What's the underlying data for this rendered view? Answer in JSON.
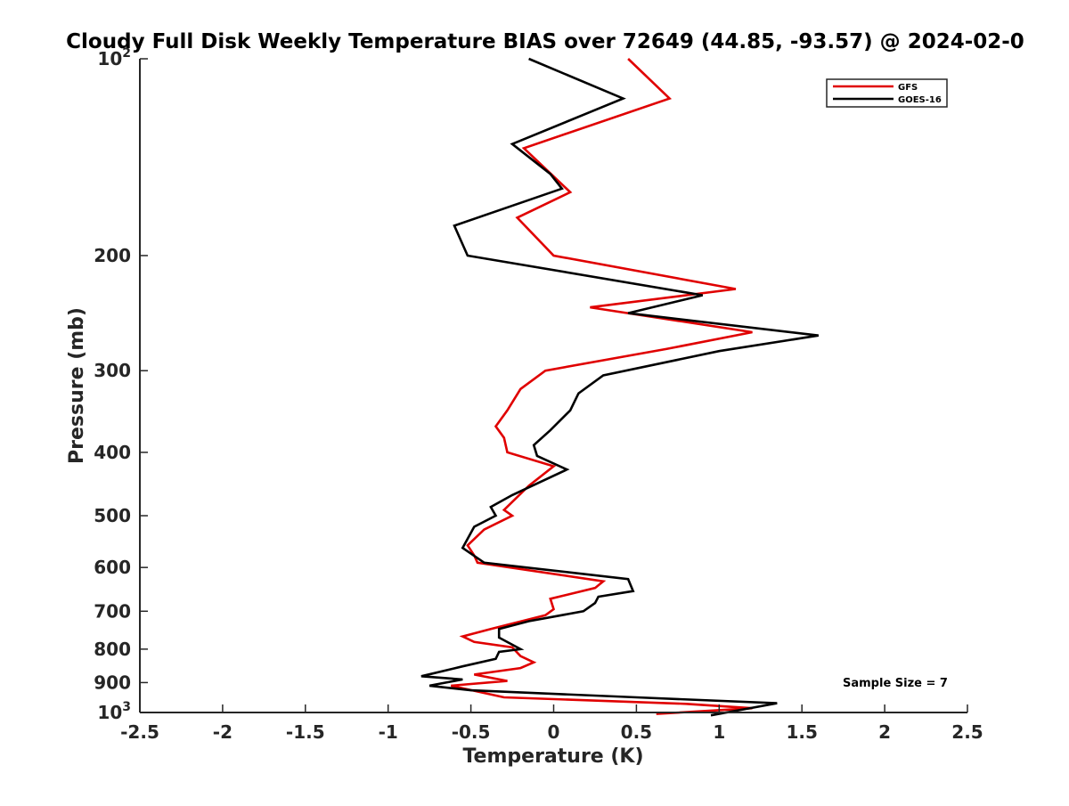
{
  "chart_data": {
    "type": "line",
    "title": "Cloudy Full Disk Weekly Temperature BIAS over 72649 (44.85, -93.57) @ 2024-02-0",
    "xlabel": "Temperature (K)",
    "ylabel": "Pressure (mb)",
    "xlim": [
      -2.5,
      2.5
    ],
    "ylim": [
      100,
      1000
    ],
    "y_scale": "log",
    "y_reversed": true,
    "x_ticks": [
      -2.5,
      -2,
      -1.5,
      -1,
      -0.5,
      0,
      0.5,
      1,
      1.5,
      2,
      2.5
    ],
    "x_tick_labels": [
      "-2.5",
      "-2",
      "-1.5",
      "-1",
      "-0.5",
      "0",
      "0.5",
      "1",
      "1.5",
      "2",
      "2.5"
    ],
    "y_ticks": [
      {
        "value": 100,
        "base": "10",
        "exp": "2"
      },
      {
        "value": 200,
        "label": "200"
      },
      {
        "value": 300,
        "label": "300"
      },
      {
        "value": 400,
        "label": "400"
      },
      {
        "value": 500,
        "label": "500"
      },
      {
        "value": 600,
        "label": "600"
      },
      {
        "value": 700,
        "label": "700"
      },
      {
        "value": 800,
        "label": "800"
      },
      {
        "value": 900,
        "label": "900"
      },
      {
        "value": 1000,
        "base": "10",
        "exp": "3"
      }
    ],
    "grid": false,
    "legend_position": "top-right",
    "annotation": "Sample Size = 7",
    "series": [
      {
        "name": "GFS",
        "color": "#e00000",
        "points": [
          [
            0.45,
            100
          ],
          [
            0.7,
            115
          ],
          [
            -0.18,
            137
          ],
          [
            0.1,
            160
          ],
          [
            -0.22,
            175
          ],
          [
            0.0,
            200
          ],
          [
            1.1,
            225
          ],
          [
            0.22,
            240
          ],
          [
            1.2,
            262
          ],
          [
            0.68,
            278
          ],
          [
            -0.05,
            300
          ],
          [
            -0.2,
            320
          ],
          [
            -0.28,
            345
          ],
          [
            -0.35,
            365
          ],
          [
            -0.3,
            380
          ],
          [
            -0.28,
            400
          ],
          [
            0.0,
            420
          ],
          [
            -0.15,
            450
          ],
          [
            -0.3,
            490
          ],
          [
            -0.25,
            500
          ],
          [
            -0.42,
            525
          ],
          [
            -0.52,
            555
          ],
          [
            -0.48,
            575
          ],
          [
            -0.46,
            590
          ],
          [
            0.3,
            630
          ],
          [
            0.25,
            645
          ],
          [
            -0.02,
            670
          ],
          [
            0.0,
            695
          ],
          [
            -0.05,
            710
          ],
          [
            -0.38,
            745
          ],
          [
            -0.55,
            765
          ],
          [
            -0.48,
            780
          ],
          [
            -0.25,
            795
          ],
          [
            -0.2,
            820
          ],
          [
            -0.12,
            838
          ],
          [
            -0.2,
            855
          ],
          [
            -0.48,
            875
          ],
          [
            -0.28,
            895
          ],
          [
            -0.62,
            910
          ],
          [
            -0.45,
            930
          ],
          [
            -0.3,
            948
          ],
          [
            0.8,
            970
          ],
          [
            1.2,
            985
          ],
          [
            0.62,
            1005
          ]
        ]
      },
      {
        "name": "GOES-16",
        "color": "#000000",
        "points": [
          [
            -0.15,
            100
          ],
          [
            0.42,
            115
          ],
          [
            -0.25,
            135
          ],
          [
            -0.02,
            150
          ],
          [
            0.05,
            158
          ],
          [
            -0.6,
            180
          ],
          [
            -0.52,
            200
          ],
          [
            0.9,
            230
          ],
          [
            0.45,
            245
          ],
          [
            1.6,
            265
          ],
          [
            1.0,
            280
          ],
          [
            0.3,
            305
          ],
          [
            0.15,
            325
          ],
          [
            0.1,
            345
          ],
          [
            -0.02,
            370
          ],
          [
            -0.12,
            390
          ],
          [
            -0.1,
            405
          ],
          [
            0.08,
            425
          ],
          [
            -0.25,
            465
          ],
          [
            -0.38,
            485
          ],
          [
            -0.35,
            500
          ],
          [
            -0.48,
            520
          ],
          [
            -0.55,
            560
          ],
          [
            -0.42,
            590
          ],
          [
            0.45,
            625
          ],
          [
            0.48,
            652
          ],
          [
            0.27,
            665
          ],
          [
            0.25,
            680
          ],
          [
            0.18,
            700
          ],
          [
            -0.15,
            725
          ],
          [
            -0.33,
            745
          ],
          [
            -0.33,
            768
          ],
          [
            -0.2,
            800
          ],
          [
            -0.33,
            808
          ],
          [
            -0.35,
            828
          ],
          [
            -0.55,
            850
          ],
          [
            -0.8,
            880
          ],
          [
            -0.55,
            890
          ],
          [
            -0.75,
            910
          ],
          [
            -0.5,
            925
          ],
          [
            0.5,
            948
          ],
          [
            1.35,
            968
          ],
          [
            0.95,
            1010
          ]
        ]
      }
    ]
  }
}
